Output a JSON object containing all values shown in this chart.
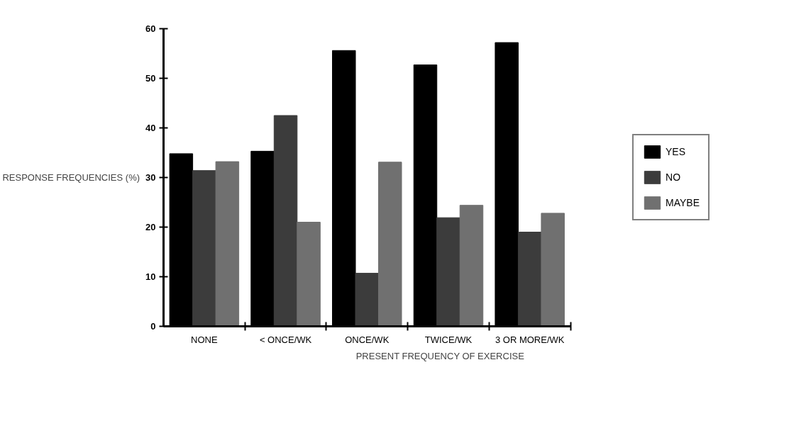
{
  "chart_data": {
    "type": "bar",
    "xlabel": "PRESENT FREQUENCY OF EXERCISE",
    "ylabel": "RESPONSE FREQUENCIES (%)",
    "categories": [
      "NONE",
      "< ONCE/WK",
      "ONCE/WK",
      "TWICE/WK",
      "3 OR MORE/WK"
    ],
    "series": [
      {
        "name": "YES",
        "color": "#000000",
        "values": [
          34.8,
          35.3,
          55.6,
          52.7,
          57.2
        ]
      },
      {
        "name": "NO",
        "color": "#3c3c3c",
        "values": [
          31.4,
          42.5,
          10.7,
          21.9,
          19.0
        ]
      },
      {
        "name": "MAYBE",
        "color": "#707070",
        "values": [
          33.2,
          21.0,
          33.1,
          24.4,
          22.8
        ]
      }
    ],
    "ylim": [
      0,
      60
    ],
    "yticks": [
      0,
      10,
      20,
      30,
      40,
      50,
      60
    ],
    "grid": false,
    "legend": "right"
  }
}
